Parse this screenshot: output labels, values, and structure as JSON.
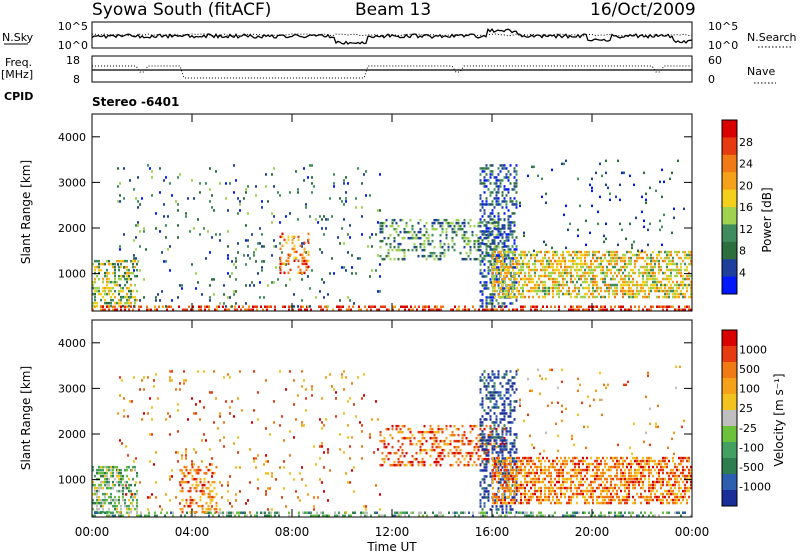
{
  "header": {
    "station": "Syowa South (fitACF)",
    "beam": "Beam 13",
    "date": "16/Oct/2009"
  },
  "noise_panel": {
    "left_label": "N.Sky",
    "left_ticks": [
      "10^5",
      "10^0"
    ],
    "right_ticks": [
      "10^5",
      "10^0"
    ],
    "right_label": "N.Search"
  },
  "freq_panel": {
    "left_label_1": "Freq.",
    "left_label_2": "[MHz]",
    "left_ticks": [
      "18",
      "8"
    ],
    "right_ticks": [
      "60",
      "0"
    ],
    "right_label": "Nave",
    "cpid_label": "CPID",
    "cpid_value": "Stereo -6401"
  },
  "chart_data": [
    {
      "type": "heatmap",
      "name": "power",
      "xlabel": "",
      "ylabel": "Slant Range [km]",
      "xlim": [
        0,
        24
      ],
      "ylim": [
        180,
        4500
      ],
      "yticks": [
        "4000",
        "3000",
        "2000",
        "1000"
      ],
      "colorbar": {
        "label": "Power [dB]",
        "ticks": [
          "28",
          "24",
          "20",
          "16",
          "12",
          "8",
          "4"
        ],
        "colors": [
          "#0018ff",
          "#1e3f9c",
          "#2d6e3e",
          "#3f8c5e",
          "#9ed24f",
          "#f4d01c",
          "#f5a21a",
          "#f07a14",
          "#e63a10",
          "#d90000"
        ]
      },
      "echo_regions": [
        {
          "t": [
            0.0,
            1.8
          ],
          "r": [
            300,
            1300
          ],
          "level": 0.45,
          "density": 0.55
        },
        {
          "t": [
            0.0,
            24.0
          ],
          "r": [
            180,
            300
          ],
          "level": 0.85,
          "density": 0.5
        },
        {
          "t": [
            1.0,
            11.5
          ],
          "r": [
            300,
            3400
          ],
          "level": 0.25,
          "density": 0.05
        },
        {
          "t": [
            7.5,
            8.7
          ],
          "r": [
            1000,
            1900
          ],
          "level": 0.75,
          "density": 0.35
        },
        {
          "t": [
            11.5,
            16.5
          ],
          "r": [
            1300,
            2200
          ],
          "level": 0.3,
          "density": 0.35
        },
        {
          "t": [
            15.5,
            17.0
          ],
          "r": [
            300,
            3400
          ],
          "level": 0.2,
          "density": 0.45
        },
        {
          "t": [
            16.0,
            24.0
          ],
          "r": [
            500,
            1500
          ],
          "level": 0.55,
          "density": 0.6
        },
        {
          "t": [
            17.0,
            23.8
          ],
          "r": [
            1500,
            3500
          ],
          "level": 0.15,
          "density": 0.03
        }
      ]
    },
    {
      "type": "heatmap",
      "name": "velocity",
      "xlabel": "Time UT",
      "ylabel": "Slant Range [km]",
      "xlim": [
        0,
        24
      ],
      "ylim": [
        180,
        4500
      ],
      "yticks": [
        "4000",
        "3000",
        "2000",
        "1000"
      ],
      "xticks": [
        "00:00",
        "04:00",
        "08:00",
        "12:00",
        "16:00",
        "20:00",
        "00:00"
      ],
      "colorbar": {
        "label": "Velocity [m s⁻¹]",
        "ticks": [
          "1000",
          "500",
          "100",
          "25",
          "-25",
          "-100",
          "-500",
          "-1000"
        ],
        "colors": [
          "#1a2e9a",
          "#2c5fb0",
          "#2e7d4e",
          "#44a060",
          "#6cc23a",
          "#bfbfbf",
          "#f2c21f",
          "#f5a21a",
          "#f07a14",
          "#e63a10",
          "#d90000"
        ]
      },
      "echo_regions": [
        {
          "t": [
            0.0,
            1.8
          ],
          "r": [
            300,
            1300
          ],
          "level": 0.4,
          "density": 0.55
        },
        {
          "t": [
            0.0,
            24.0
          ],
          "r": [
            180,
            300
          ],
          "level": 0.35,
          "density": 0.45
        },
        {
          "t": [
            1.0,
            11.5
          ],
          "r": [
            300,
            3400
          ],
          "level": 0.75,
          "density": 0.05
        },
        {
          "t": [
            3.5,
            5.0
          ],
          "r": [
            300,
            1300
          ],
          "level": 0.75,
          "density": 0.4
        },
        {
          "t": [
            11.5,
            16.5
          ],
          "r": [
            1300,
            2200
          ],
          "level": 0.8,
          "density": 0.35
        },
        {
          "t": [
            15.5,
            17.0
          ],
          "r": [
            300,
            3400
          ],
          "level": 0.05,
          "density": 0.45
        },
        {
          "t": [
            16.0,
            24.0
          ],
          "r": [
            500,
            1500
          ],
          "level": 0.75,
          "density": 0.6
        },
        {
          "t": [
            17.0,
            23.8
          ],
          "r": [
            1500,
            3500
          ],
          "level": 0.7,
          "density": 0.03
        }
      ]
    }
  ]
}
